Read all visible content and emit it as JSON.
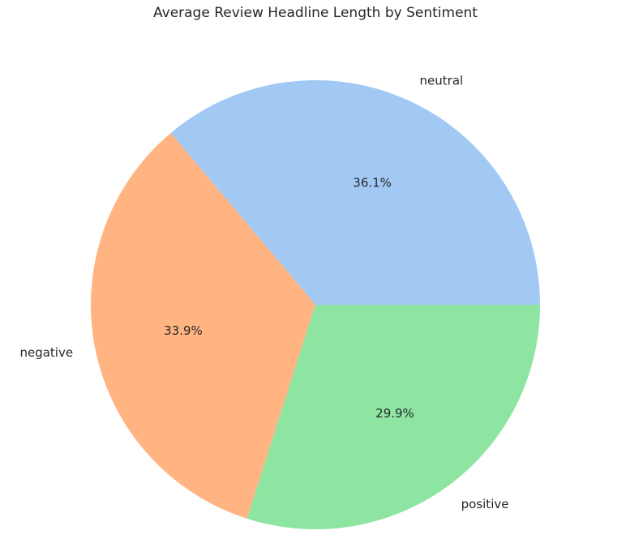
{
  "chart_data": {
    "type": "pie",
    "title": "Average Review Headline Length by Sentiment",
    "categories": [
      "neutral",
      "negative",
      "positive"
    ],
    "values": [
      36.1,
      33.9,
      29.9
    ],
    "value_labels": [
      "36.1%",
      "33.9%",
      "29.9%"
    ],
    "colors": [
      "#a1c9f4",
      "#ffb482",
      "#8de5a1"
    ],
    "start_angle_deg": 0,
    "direction": "counterclockwise"
  }
}
